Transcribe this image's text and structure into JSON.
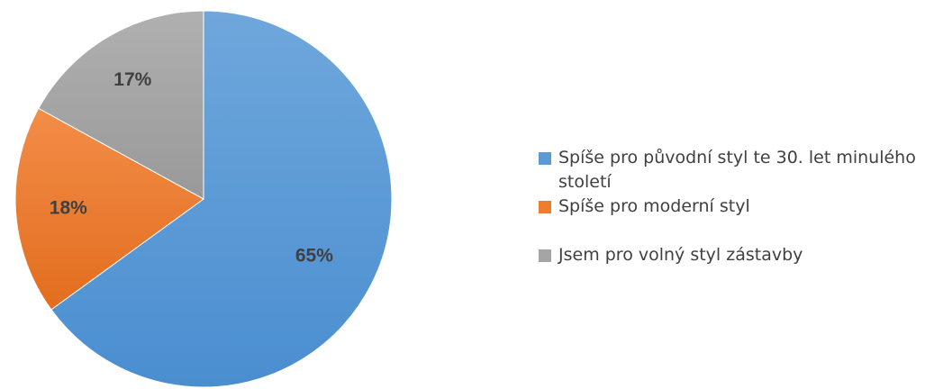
{
  "chart_data": {
    "type": "pie",
    "title": "",
    "slices": [
      {
        "label": "Spíše pro původní styl te 30. let minulého století",
        "value": 65,
        "value_label": "65%",
        "color": "#5b9bd5"
      },
      {
        "label": "Spíše pro moderní styl",
        "value": 18,
        "value_label": "18%",
        "color": "#ed7d31"
      },
      {
        "label": "Jsem pro volný styl zástavby",
        "value": 17,
        "value_label": "17%",
        "color": "#a5a5a5"
      }
    ],
    "legend_position": "right",
    "start_angle": "top, clockwise"
  }
}
